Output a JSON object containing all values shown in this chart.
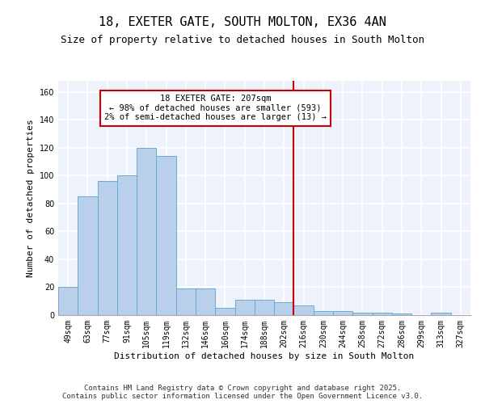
{
  "title1": "18, EXETER GATE, SOUTH MOLTON, EX36 4AN",
  "title2": "Size of property relative to detached houses in South Molton",
  "xlabel": "Distribution of detached houses by size in South Molton",
  "ylabel": "Number of detached properties",
  "categories": [
    "49sqm",
    "63sqm",
    "77sqm",
    "91sqm",
    "105sqm",
    "119sqm",
    "132sqm",
    "146sqm",
    "160sqm",
    "174sqm",
    "188sqm",
    "202sqm",
    "216sqm",
    "230sqm",
    "244sqm",
    "258sqm",
    "272sqm",
    "286sqm",
    "299sqm",
    "313sqm",
    "327sqm"
  ],
  "values": [
    20,
    85,
    96,
    100,
    120,
    114,
    19,
    19,
    5,
    11,
    11,
    9,
    7,
    3,
    3,
    2,
    2,
    1,
    0,
    2,
    0
  ],
  "bar_color": "#b8d0ea",
  "bar_edge_color": "#6aaad4",
  "vline_color": "#cc0000",
  "annotation_line1": "18 EXETER GATE: 207sqm",
  "annotation_line2": "← 98% of detached houses are smaller (593)",
  "annotation_line3": "2% of semi-detached houses are larger (13) →",
  "annotation_box_color": "#ffffff",
  "annotation_box_edge": "#cc0000",
  "ylim": [
    0,
    168
  ],
  "yticks": [
    0,
    20,
    40,
    60,
    80,
    100,
    120,
    140,
    160
  ],
  "background_color": "#eef2fb",
  "grid_color": "#ffffff",
  "footer1": "Contains HM Land Registry data © Crown copyright and database right 2025.",
  "footer2": "Contains public sector information licensed under the Open Government Licence v3.0.",
  "title_fontsize": 11,
  "subtitle_fontsize": 9,
  "axis_label_fontsize": 8,
  "tick_fontsize": 7,
  "annotation_fontsize": 7.5,
  "footer_fontsize": 6.5
}
